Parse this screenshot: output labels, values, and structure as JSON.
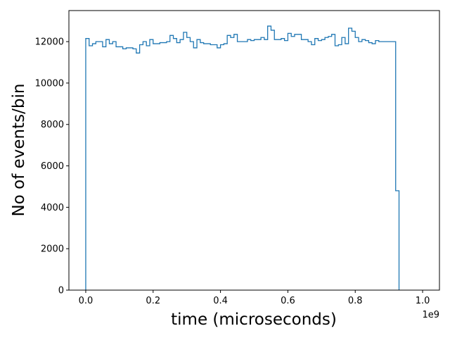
{
  "chart_data": {
    "type": "histogram-step",
    "title": "",
    "xlabel": "time (microseconds)",
    "ylabel": "No of events/bin",
    "x_offset_label": "1e9",
    "xlim": [
      -0.05,
      1.05
    ],
    "ylim": [
      0,
      13500
    ],
    "x_ticks": [
      {
        "value": 0.0,
        "label": "0.0"
      },
      {
        "value": 0.2,
        "label": "0.2"
      },
      {
        "value": 0.4,
        "label": "0.4"
      },
      {
        "value": 0.6,
        "label": "0.6"
      },
      {
        "value": 0.8,
        "label": "0.8"
      },
      {
        "value": 1.0,
        "label": "1.0"
      }
    ],
    "y_ticks": [
      {
        "value": 0,
        "label": "0"
      },
      {
        "value": 2000,
        "label": "2000"
      },
      {
        "value": 4000,
        "label": "4000"
      },
      {
        "value": 6000,
        "label": "6000"
      },
      {
        "value": 8000,
        "label": "8000"
      },
      {
        "value": 10000,
        "label": "10000"
      },
      {
        "value": 12000,
        "label": "12000"
      }
    ],
    "grid": false,
    "line_color": "#1f77b4",
    "bin_start": 0.0,
    "bin_width": 0.01,
    "values": [
      12150,
      11800,
      11900,
      12000,
      12000,
      11750,
      12100,
      11900,
      12000,
      11750,
      11750,
      11650,
      11700,
      11700,
      11650,
      11450,
      11850,
      12000,
      11800,
      12100,
      11900,
      11900,
      11950,
      11950,
      12000,
      12300,
      12150,
      11950,
      12100,
      12450,
      12200,
      12000,
      11700,
      12100,
      11950,
      11900,
      11900,
      11850,
      11850,
      11700,
      11850,
      11900,
      12300,
      12200,
      12350,
      12000,
      12000,
      12000,
      12100,
      12050,
      12100,
      12100,
      12200,
      12100,
      12750,
      12550,
      12100,
      12100,
      12150,
      12050,
      12400,
      12250,
      12350,
      12350,
      12100,
      12100,
      12000,
      11850,
      12150,
      12050,
      12100,
      12200,
      12250,
      12350,
      11800,
      11850,
      12200,
      11900,
      12650,
      12500,
      12200,
      12000,
      12100,
      12050,
      11950,
      11900,
      12050,
      12000,
      12000,
      12000,
      12000,
      12000,
      4800
    ]
  }
}
